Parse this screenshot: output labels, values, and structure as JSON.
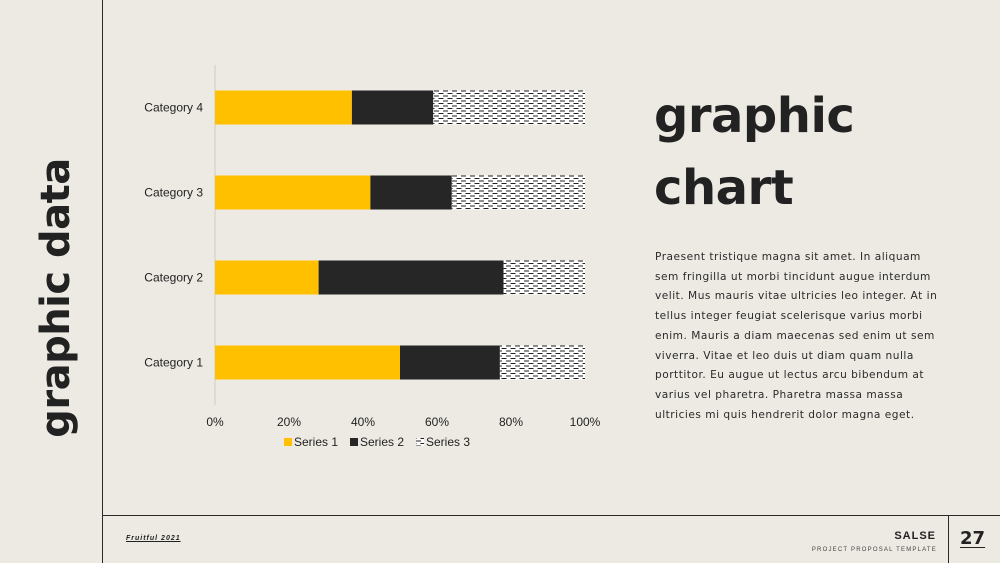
{
  "side_title": "graphic data",
  "main_title_line1": "graphic",
  "main_title_line2": "chart",
  "body_text": "Praesent tristique magna sit amet. In aliquam sem fringilla ut morbi tincidunt augue interdum velit. Mus mauris vitae ultricies leo integer. At in tellus integer feugiat scelerisque varius morbi enim. Mauris a diam maecenas sed enim ut sem viverra. Vitae et leo duis ut diam quam nulla porttitor. Eu augue ut lectus arcu bibendum at varius vel pharetra. Pharetra massa massa ultricies mi quis hendrerit dolor magna eget.",
  "footer": {
    "left_label": "Fruitful 2021",
    "brand": "SALSE",
    "tagline": "PROJECT PROPOSAL TEMPLATE",
    "page_number": "27"
  },
  "colors": {
    "background": "#EDEAE3",
    "series1": "#FFC000",
    "series2": "#262626",
    "text": "#222222"
  },
  "chart_data": {
    "type": "bar",
    "orientation": "horizontal",
    "stacked": "percent",
    "categories": [
      "Category 1",
      "Category 2",
      "Category 3",
      "Category 4"
    ],
    "series": [
      {
        "name": "Series 1",
        "values": [
          50,
          28,
          42,
          37
        ],
        "pattern": "solid"
      },
      {
        "name": "Series 2",
        "values": [
          27,
          50,
          22,
          22
        ],
        "pattern": "solid"
      },
      {
        "name": "Series 3",
        "values": [
          23,
          22,
          36,
          41
        ],
        "pattern": "dashed-hatch"
      }
    ],
    "xticks": [
      "0%",
      "20%",
      "40%",
      "60%",
      "80%",
      "100%"
    ],
    "xlim": [
      0,
      100
    ],
    "legend_position": "bottom",
    "grid": false
  }
}
